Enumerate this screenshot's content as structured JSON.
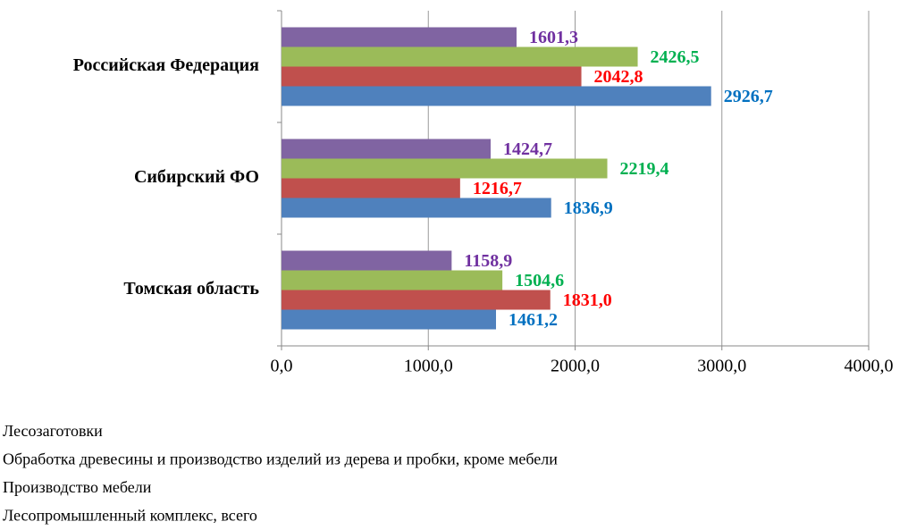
{
  "chart_data": {
    "type": "bar",
    "orientation": "horizontal",
    "categories": [
      "Российская Федерация",
      "Сибирский ФО",
      "Томская область"
    ],
    "series": [
      {
        "name": "Лесозаготовки",
        "color": "#8064a2",
        "label_color": "#7030a0",
        "values": [
          1601.3,
          1424.7,
          1158.9
        ],
        "value_labels": [
          "1601,3",
          "1424,7",
          "1158,9"
        ]
      },
      {
        "name": "Обработка древесины и производство изделий из дерева и пробки, кроме мебели",
        "color": "#9bbb59",
        "label_color": "#00b050",
        "values": [
          2426.5,
          2219.4,
          1504.6
        ],
        "value_labels": [
          "2426,5",
          "2219,4",
          "1504,6"
        ]
      },
      {
        "name": "Производство мебели",
        "color": "#c0504d",
        "label_color": "#ff0000",
        "values": [
          2042.8,
          1216.7,
          1831.0
        ],
        "value_labels": [
          "2042,8",
          "1216,7",
          "1831,0"
        ]
      },
      {
        "name": "Лесопромышленный комплекс, всего",
        "color": "#4f81bd",
        "label_color": "#0070c0",
        "values": [
          2926.7,
          1836.9,
          1461.2
        ],
        "value_labels": [
          "2926,7",
          "1836,9",
          "1461,2"
        ]
      }
    ],
    "xlim": [
      0,
      4000
    ],
    "xticks": [
      {
        "value": 0,
        "label": "0,0"
      },
      {
        "value": 1000,
        "label": "1000,0"
      },
      {
        "value": 2000,
        "label": "2000,0"
      },
      {
        "value": 3000,
        "label": "3000,0"
      },
      {
        "value": 4000,
        "label": "4000,0"
      }
    ],
    "grid": true
  }
}
